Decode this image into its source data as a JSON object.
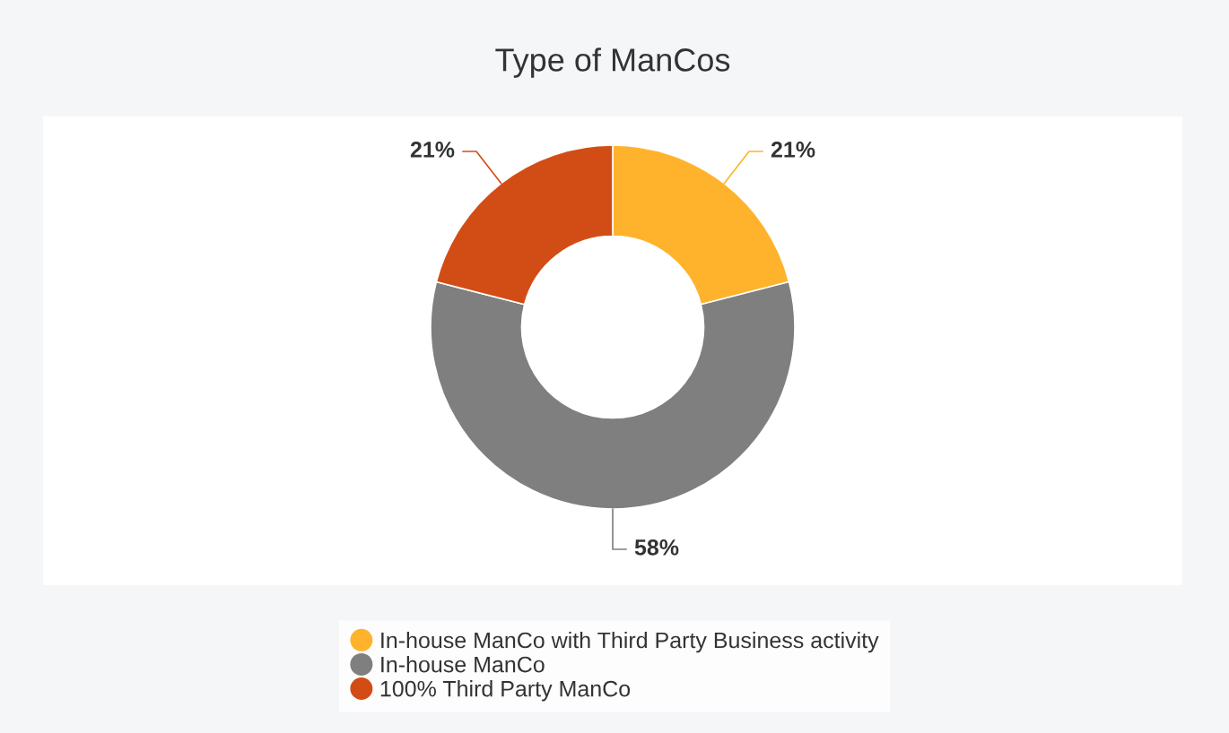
{
  "chart_data": {
    "type": "donut",
    "title": "Type of ManCos",
    "categories": [
      "In-house ManCo with Third Party Business activity",
      "In-house ManCo",
      "100% Third Party ManCo"
    ],
    "values": [
      21,
      58,
      21
    ],
    "colors": [
      "#ffb32c",
      "#7f7f7f",
      "#d24d15"
    ],
    "value_labels": [
      "21%",
      "58%",
      "21%"
    ],
    "legend": "bottom"
  }
}
